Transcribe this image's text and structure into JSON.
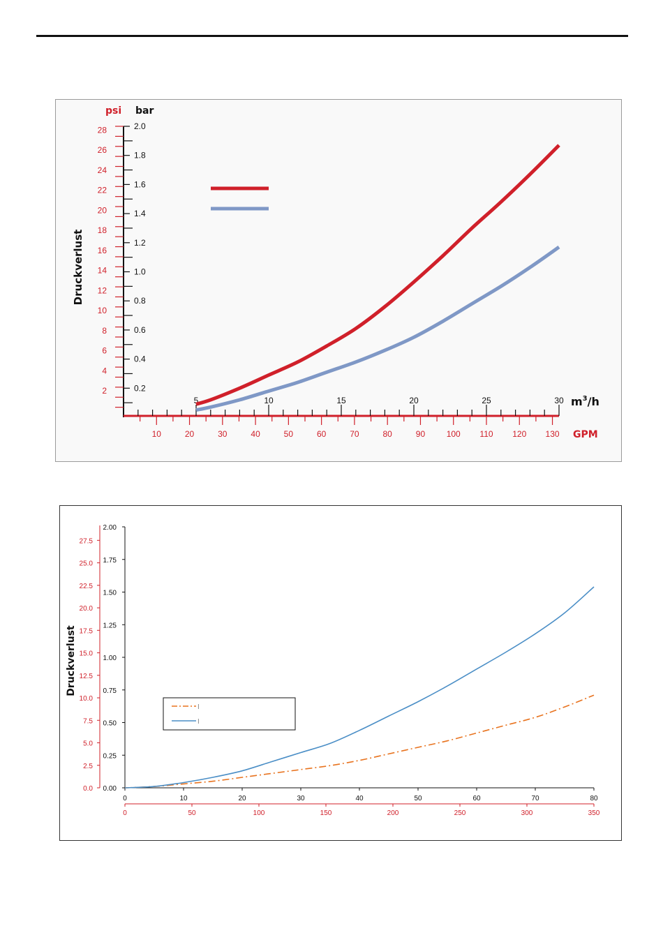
{
  "colors": {
    "red": "#d0202a",
    "blue": "#7f98c6",
    "orange": "#e8731f",
    "steel": "#4a8ec6",
    "axis_red": "#d0202a",
    "axis_black": "#111111"
  },
  "chart_data": [
    {
      "type": "line",
      "title": "",
      "ylabel": "Druckverlust",
      "left_axis": {
        "unit": "psi",
        "ticks": [
          "2",
          "4",
          "6",
          "8",
          "10",
          "12",
          "14",
          "16",
          "18",
          "20",
          "22",
          "24",
          "26",
          "28"
        ],
        "range": [
          0,
          29
        ]
      },
      "right_axis": {
        "unit": "bar",
        "ticks": [
          "0.2",
          "0.4",
          "0.6",
          "0.8",
          "1.0",
          "1.2",
          "1.4",
          "1.6",
          "1.8",
          "2.0"
        ],
        "range": [
          0,
          2.0
        ]
      },
      "x_axis_top": {
        "unit": "m3/h",
        "unit_main": "m",
        "unit_sup": "3",
        "unit_tail": "/h",
        "ticks": [
          "5",
          "10",
          "15",
          "20",
          "25",
          "30"
        ],
        "range": [
          0,
          30
        ]
      },
      "x_axis_bottom": {
        "unit": "GPM",
        "ticks": [
          "10",
          "20",
          "30",
          "40",
          "50",
          "60",
          "70",
          "80",
          "90",
          "100",
          "110",
          "120",
          "130"
        ],
        "range": [
          0,
          132
        ]
      },
      "legend": {
        "placement": "top-left",
        "entries": [
          "",
          ""
        ]
      },
      "series": [
        {
          "color": "#d0202a",
          "x": [
            5,
            6,
            8,
            10,
            12,
            14,
            16,
            18,
            20,
            22,
            24,
            26,
            28,
            30
          ],
          "y": [
            0.09,
            0.12,
            0.2,
            0.29,
            0.38,
            0.49,
            0.61,
            0.76,
            0.93,
            1.11,
            1.3,
            1.48,
            1.67,
            1.87
          ]
        },
        {
          "color": "#7f98c6",
          "x": [
            5,
            6,
            8,
            10,
            12,
            14,
            16,
            18,
            20,
            22,
            24,
            26,
            28,
            30
          ],
          "y": [
            0.05,
            0.07,
            0.12,
            0.18,
            0.24,
            0.31,
            0.38,
            0.46,
            0.55,
            0.66,
            0.78,
            0.9,
            1.03,
            1.17
          ]
        }
      ]
    },
    {
      "type": "line",
      "title": "",
      "ylabel": "Druckverlust",
      "left_axis": {
        "ticks": [
          "0.0",
          "2.5",
          "5.0",
          "7.5",
          "10.0",
          "12.5",
          "15.0",
          "17.5",
          "20.0",
          "22.5",
          "25.0",
          "27.5"
        ],
        "range": [
          0,
          29
        ]
      },
      "right_axis": {
        "ticks": [
          "0.00",
          "0.25",
          "0.50",
          "0.75",
          "1.00",
          "1.25",
          "1.50",
          "1.75",
          "2.00"
        ],
        "range": [
          0,
          2.0
        ]
      },
      "x_axis_top": {
        "ticks": [
          "0",
          "10",
          "20",
          "30",
          "40",
          "50",
          "60",
          "70",
          "80"
        ],
        "range": [
          0,
          80
        ]
      },
      "x_axis_bottom": {
        "ticks": [
          "0",
          "50",
          "100",
          "150",
          "200",
          "250",
          "300",
          "350"
        ],
        "range": [
          0,
          350
        ]
      },
      "legend": {
        "placement": "center-left",
        "entries": [
          "I",
          "I"
        ]
      },
      "series": [
        {
          "color": "#e8731f",
          "dash": "dashdot",
          "x": [
            0,
            5,
            10,
            15,
            20,
            25,
            30,
            35,
            40,
            45,
            50,
            55,
            60,
            65,
            70,
            75,
            80
          ],
          "y": [
            0,
            0.01,
            0.03,
            0.05,
            0.08,
            0.11,
            0.14,
            0.17,
            0.21,
            0.26,
            0.31,
            0.36,
            0.42,
            0.48,
            0.54,
            0.62,
            0.71
          ]
        },
        {
          "color": "#4a8ec6",
          "dash": "solid",
          "x": [
            0,
            5,
            10,
            15,
            20,
            25,
            30,
            35,
            40,
            45,
            50,
            55,
            60,
            65,
            70,
            75,
            80
          ],
          "y": [
            0,
            0.01,
            0.04,
            0.08,
            0.13,
            0.2,
            0.27,
            0.34,
            0.44,
            0.55,
            0.66,
            0.78,
            0.91,
            1.04,
            1.18,
            1.34,
            1.54
          ]
        }
      ]
    }
  ]
}
